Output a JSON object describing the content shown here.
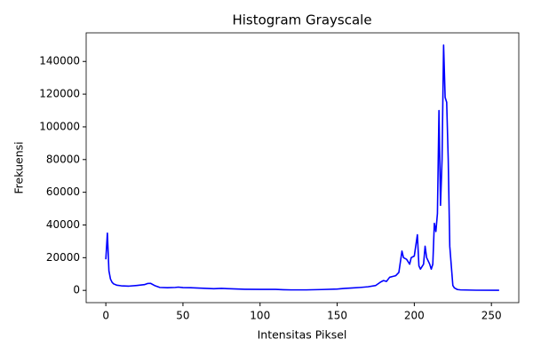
{
  "chart_data": {
    "type": "line",
    "title": "Histogram Grayscale",
    "x_label": "Intensitas Piksel",
    "y_label": "Frekuensi",
    "x": [
      0,
      1,
      2,
      3,
      4,
      5,
      7,
      10,
      15,
      20,
      25,
      27,
      29,
      32,
      35,
      40,
      45,
      47,
      50,
      55,
      60,
      65,
      70,
      75,
      80,
      90,
      100,
      110,
      115,
      120,
      130,
      140,
      150,
      155,
      160,
      165,
      170,
      175,
      178,
      180,
      182,
      184,
      186,
      188,
      190,
      192,
      193,
      195,
      197,
      198,
      200,
      202,
      203,
      204,
      206,
      207,
      208,
      210,
      211,
      212,
      213,
      214,
      215,
      216,
      217,
      218,
      219,
      220,
      221,
      222,
      223,
      224,
      225,
      226,
      228,
      230,
      240,
      255
    ],
    "values": [
      19000,
      35000,
      12000,
      7000,
      5000,
      4000,
      3200,
      2800,
      2600,
      3000,
      3500,
      4200,
      4300,
      2800,
      1800,
      1600,
      1800,
      2000,
      1700,
      1600,
      1400,
      1200,
      1000,
      1200,
      1000,
      700,
      600,
      600,
      400,
      300,
      300,
      500,
      800,
      1200,
      1500,
      1800,
      2200,
      3000,
      5000,
      6000,
      5500,
      8000,
      8500,
      9000,
      11000,
      24000,
      20000,
      19000,
      16000,
      20000,
      21000,
      34000,
      15000,
      13000,
      16000,
      27000,
      20000,
      16000,
      13000,
      16000,
      41000,
      36000,
      47000,
      110000,
      52000,
      80000,
      150000,
      118000,
      115000,
      80000,
      27000,
      15000,
      3000,
      1500,
      500,
      300,
      100,
      50
    ],
    "color": "#0000ff",
    "xlim": [
      -12.75,
      267.75
    ],
    "xticks": [
      0,
      50,
      100,
      150,
      200,
      250
    ],
    "ylim": [
      -7500,
      157500
    ],
    "yticks": [
      0,
      20000,
      40000,
      60000,
      80000,
      100000,
      120000,
      140000
    ],
    "grid": false
  }
}
